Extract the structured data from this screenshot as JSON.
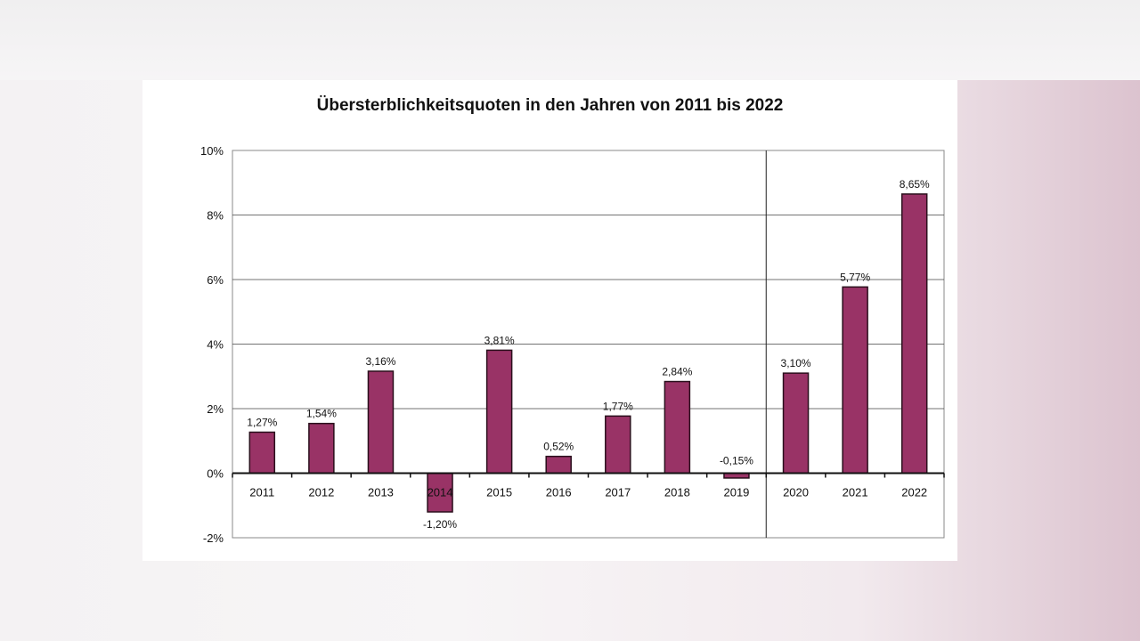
{
  "chart_data": {
    "type": "bar",
    "title": "Übersterblichkeitsquoten in den Jahren von 2011 bis 2022",
    "xlabel": "",
    "ylabel": "",
    "categories": [
      "2011",
      "2012",
      "2013",
      "2014",
      "2015",
      "2016",
      "2017",
      "2018",
      "2019",
      "2020",
      "2021",
      "2022"
    ],
    "values": [
      1.27,
      1.54,
      3.16,
      -1.2,
      3.81,
      0.52,
      1.77,
      2.84,
      -0.15,
      3.1,
      5.77,
      8.65
    ],
    "data_labels": [
      "1,27%",
      "1,54%",
      "3,16%",
      "-1,20%",
      "3,81%",
      "0,52%",
      "1,77%",
      "2,84%",
      "-0,15%",
      "3,10%",
      "5,77%",
      "8,65%"
    ],
    "ylim": [
      -2,
      10
    ],
    "yticks": [
      -2,
      0,
      2,
      4,
      6,
      8,
      10
    ],
    "ytick_labels": [
      "-2%",
      "0%",
      "2%",
      "4%",
      "6%",
      "8%",
      "10%"
    ],
    "grid": true,
    "separator_after": "2019",
    "bar_color": "#993366",
    "bar_outline": "#2a0f1c"
  }
}
